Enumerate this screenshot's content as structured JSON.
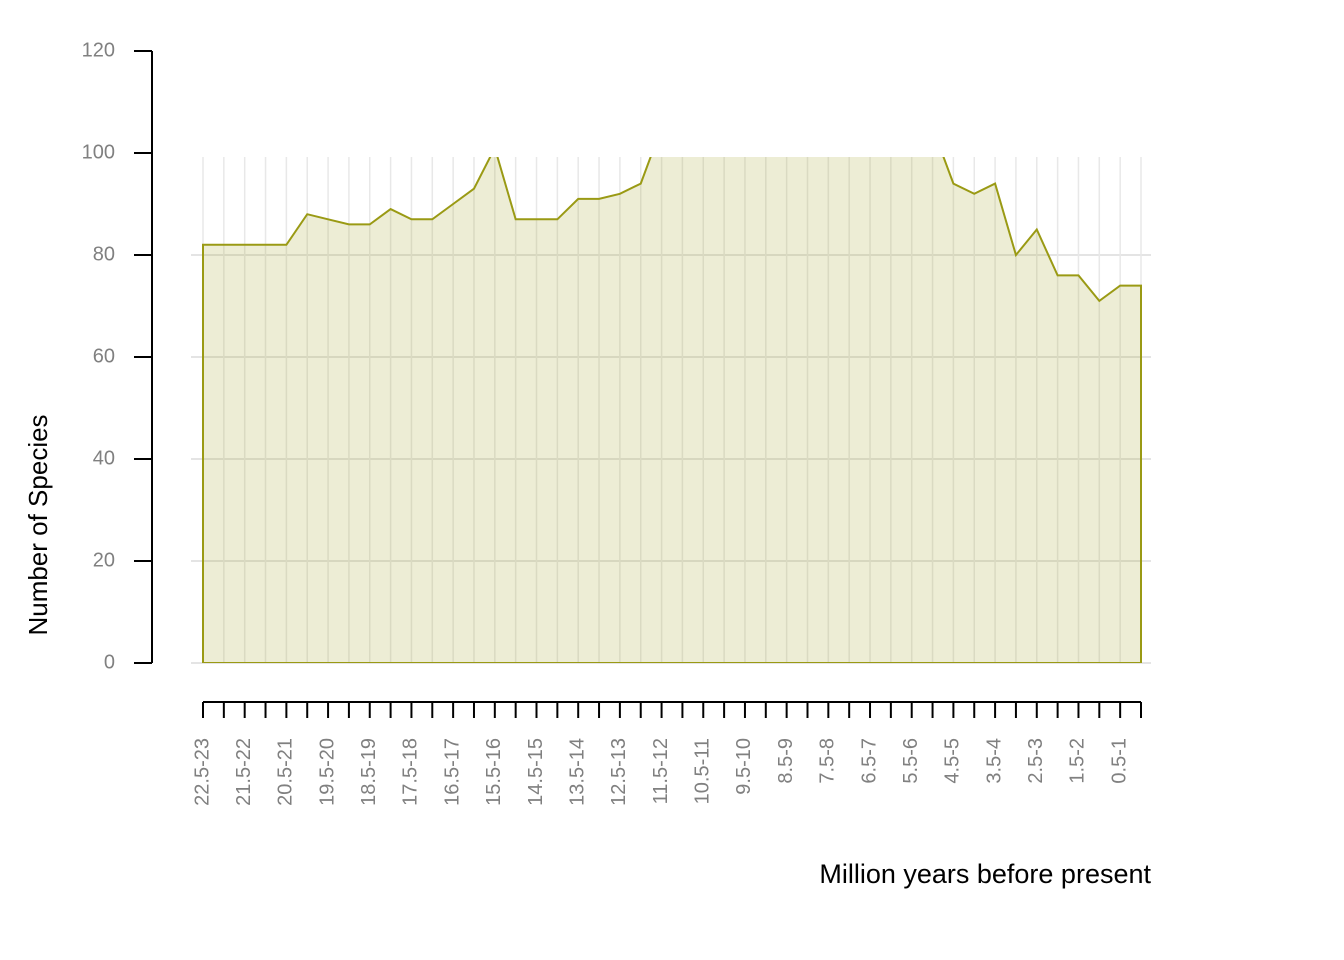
{
  "chart_data": {
    "type": "area",
    "y_label": "Number of Species",
    "x_label": "Million years before present",
    "categories": [
      "22.5-23",
      null,
      "21.5-22",
      null,
      "20.5-21",
      null,
      "19.5-20",
      null,
      "18.5-19",
      null,
      "17.5-18",
      null,
      "16.5-17",
      null,
      "15.5-16",
      null,
      "14.5-15",
      null,
      "13.5-14",
      null,
      "12.5-13",
      null,
      "11.5-12",
      null,
      "10.5-11",
      null,
      "9.5-10",
      null,
      "8.5-9",
      null,
      "7.5-8",
      null,
      "6.5-7",
      null,
      "5.5-6",
      null,
      "4.5-5",
      null,
      "3.5-4",
      null,
      "2.5-3",
      null,
      "1.5-2",
      null,
      "0.5-1",
      null
    ],
    "values": [
      82,
      82,
      82,
      82,
      82,
      88,
      87,
      86,
      86,
      89,
      87,
      87,
      90,
      93,
      101,
      87,
      87,
      87,
      91,
      91,
      92,
      94,
      105,
      105,
      105,
      105,
      105,
      105,
      105,
      105,
      105,
      105,
      105,
      105,
      105,
      105,
      94,
      92,
      94,
      80,
      85,
      76,
      76,
      71,
      74,
      74
    ],
    "color": "#9a9a14",
    "ylim": [
      0,
      120
    ],
    "yticks": [
      0,
      20,
      40,
      60,
      80,
      100,
      120
    ],
    "grid": true
  }
}
